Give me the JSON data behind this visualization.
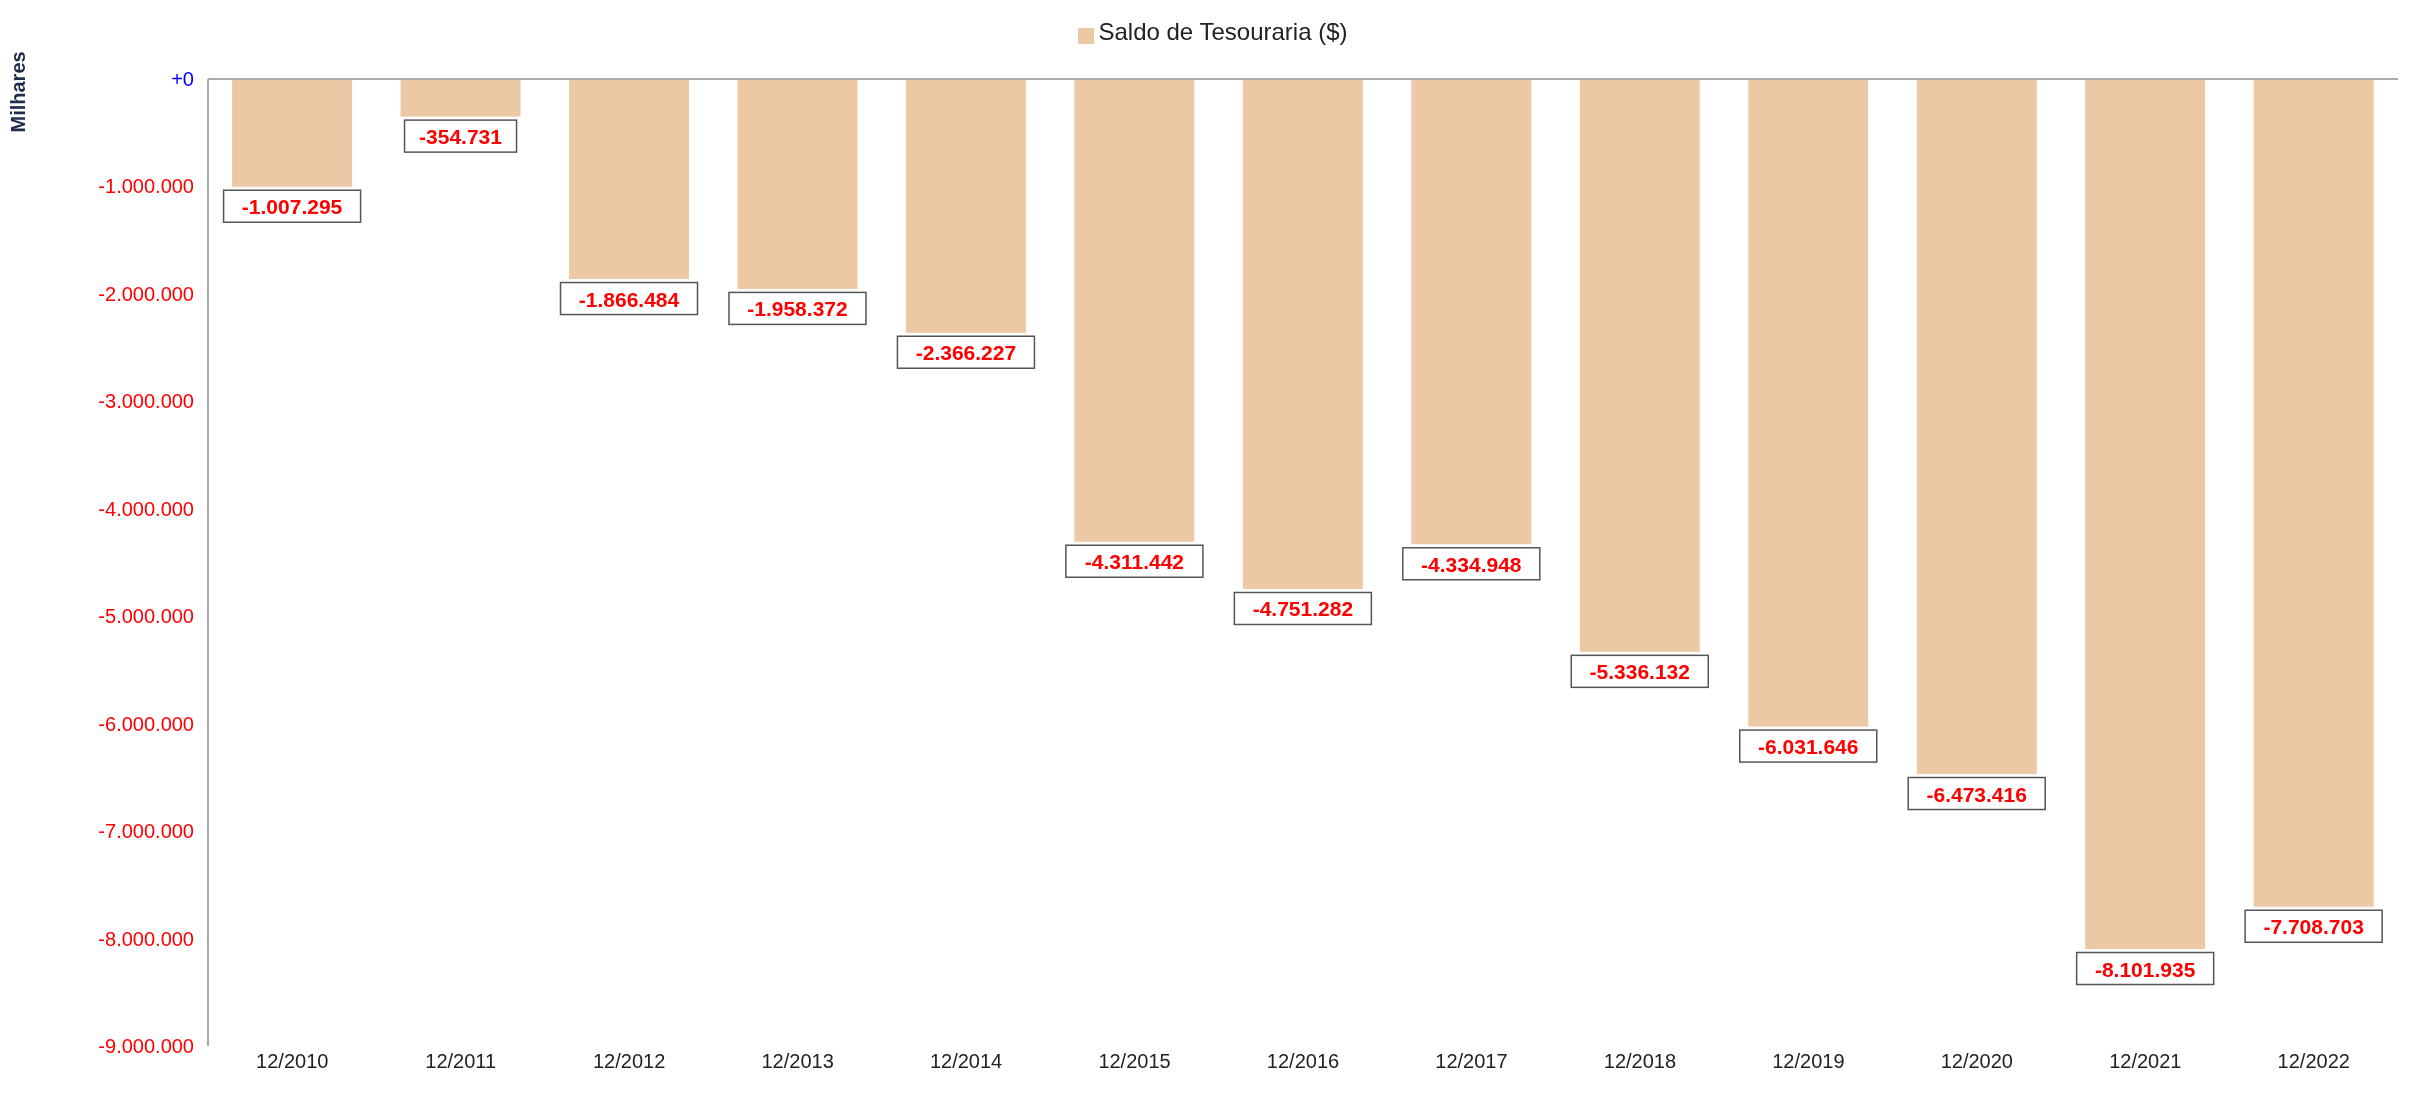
{
  "chart_data": {
    "type": "bar",
    "ylabel": "Milhares",
    "legend": "top",
    "grid": false,
    "categories": [
      "12/2010",
      "12/2011",
      "12/2012",
      "12/2013",
      "12/2014",
      "12/2015",
      "12/2016",
      "12/2017",
      "12/2018",
      "12/2019",
      "12/2020",
      "12/2021",
      "12/2022"
    ],
    "series": [
      {
        "name": "Saldo de Tesouraria ($)",
        "color": "#ecc8a4",
        "values": [
          -1007295,
          -354731,
          -1866484,
          -1958372,
          -2366227,
          -4311442,
          -4751282,
          -4334948,
          -5336132,
          -6031646,
          -6473416,
          -8101935,
          -7708703
        ],
        "value_labels": [
          "-1.007.295",
          "-354.731",
          "-1.866.484",
          "-1.958.372",
          "-2.366.227",
          "-4.311.442",
          "-4.751.282",
          "-4.334.948",
          "-5.336.132",
          "-6.031.646",
          "-6.473.416",
          "-8.101.935",
          "-7.708.703"
        ]
      }
    ],
    "ylim": [
      -9000000,
      0
    ],
    "yticks": [
      {
        "value": 0,
        "label": "+0"
      },
      {
        "value": -1000000,
        "label": "-1.000.000"
      },
      {
        "value": -2000000,
        "label": "-2.000.000"
      },
      {
        "value": -3000000,
        "label": "-3.000.000"
      },
      {
        "value": -4000000,
        "label": "-4.000.000"
      },
      {
        "value": -5000000,
        "label": "-5.000.000"
      },
      {
        "value": -6000000,
        "label": "-6.000.000"
      },
      {
        "value": -7000000,
        "label": "-7.000.000"
      },
      {
        "value": -8000000,
        "label": "-8.000.000"
      },
      {
        "value": -9000000,
        "label": "-9.000.000"
      }
    ]
  }
}
